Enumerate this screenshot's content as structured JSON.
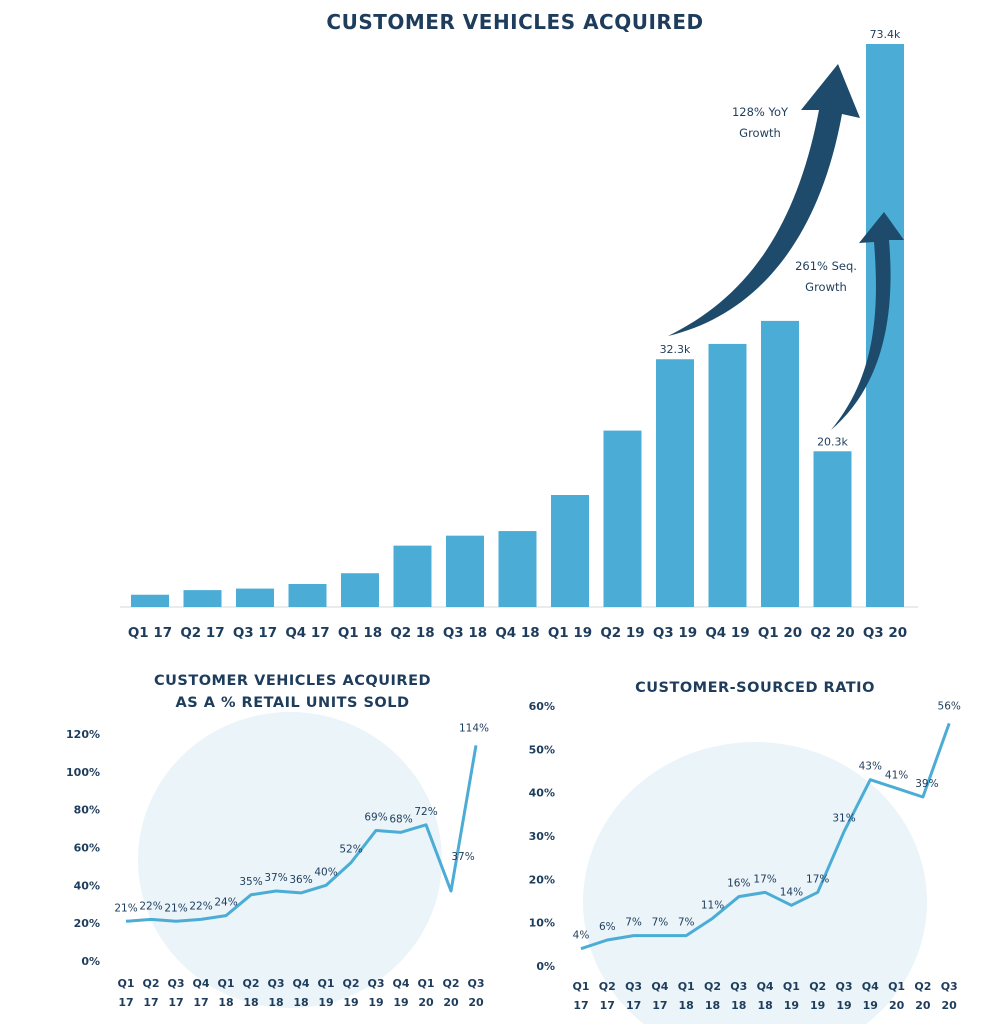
{
  "colors": {
    "bar": "#4bacd6",
    "line": "#4bacd6",
    "dark": "#1e4a6b",
    "circle": "#eaf4f9",
    "text": "#1e3d5c"
  },
  "main_title": "CUSTOMER VEHICLES ACQUIRED",
  "left_title_line1": "CUSTOMER VEHICLES ACQUIRED",
  "left_title_line2": "AS A % RETAIL UNITS SOLD",
  "right_title": "CUSTOMER-SOURCED RATIO",
  "annotations": {
    "yoy": [
      "128% YoY",
      "Growth"
    ],
    "seq": [
      "261% Seq.",
      "Growth"
    ]
  },
  "chart_data": [
    {
      "type": "bar",
      "title": "CUSTOMER VEHICLES ACQUIRED",
      "categories": [
        "Q1 17",
        "Q2 17",
        "Q3 17",
        "Q4 17",
        "Q1 18",
        "Q2 18",
        "Q3 18",
        "Q4 18",
        "Q1 19",
        "Q2 19",
        "Q3 19",
        "Q4 19",
        "Q1 20",
        "Q2 20",
        "Q3 20"
      ],
      "values": [
        1.6,
        2.2,
        2.4,
        3.0,
        4.4,
        8.0,
        9.3,
        9.9,
        14.6,
        23.0,
        32.3,
        34.3,
        37.3,
        20.3,
        73.4
      ],
      "data_labels": [
        "",
        "",
        "",
        "",
        "",
        "",
        "",
        "",
        "",
        "",
        "32.3k",
        "",
        "",
        "20.3k",
        "73.4k"
      ],
      "ylim": [
        0,
        73.4
      ],
      "unit": "k"
    },
    {
      "type": "line",
      "title": "CUSTOMER VEHICLES ACQUIRED AS A % RETAIL UNITS SOLD",
      "categories": [
        [
          "Q1",
          "17"
        ],
        [
          "Q2",
          "17"
        ],
        [
          "Q3",
          "17"
        ],
        [
          "Q4",
          "17"
        ],
        [
          "Q1",
          "18"
        ],
        [
          "Q2",
          "18"
        ],
        [
          "Q3",
          "18"
        ],
        [
          "Q4",
          "18"
        ],
        [
          "Q1",
          "19"
        ],
        [
          "Q2",
          "19"
        ],
        [
          "Q3",
          "19"
        ],
        [
          "Q4",
          "19"
        ],
        [
          "Q1",
          "20"
        ],
        [
          "Q2",
          "20"
        ],
        [
          "Q3",
          "20"
        ]
      ],
      "values": [
        21,
        22,
        21,
        22,
        24,
        35,
        37,
        36,
        40,
        52,
        69,
        68,
        72,
        37,
        114
      ],
      "data_labels": [
        "21%",
        "22%",
        "21%",
        "22%",
        "24%",
        "35%",
        "37%",
        "36%",
        "40%",
        "52%",
        "69%",
        "68%",
        "72%",
        "37%",
        "114%"
      ],
      "yticks": [
        "0%",
        "20%",
        "40%",
        "60%",
        "80%",
        "100%",
        "120%"
      ],
      "ylim": [
        0,
        120
      ]
    },
    {
      "type": "line",
      "title": "CUSTOMER-SOURCED RATIO",
      "categories": [
        [
          "Q1",
          "17"
        ],
        [
          "Q2",
          "17"
        ],
        [
          "Q3",
          "17"
        ],
        [
          "Q4",
          "17"
        ],
        [
          "Q1",
          "18"
        ],
        [
          "Q2",
          "18"
        ],
        [
          "Q3",
          "18"
        ],
        [
          "Q4",
          "18"
        ],
        [
          "Q1",
          "19"
        ],
        [
          "Q2",
          "19"
        ],
        [
          "Q3",
          "19"
        ],
        [
          "Q4",
          "19"
        ],
        [
          "Q1",
          "20"
        ],
        [
          "Q2",
          "20"
        ],
        [
          "Q3",
          "20"
        ]
      ],
      "values": [
        4,
        6,
        7,
        7,
        7,
        11,
        16,
        17,
        14,
        17,
        31,
        43,
        41,
        39,
        56
      ],
      "data_labels": [
        "4%",
        "6%",
        "7%",
        "7%",
        "7%",
        "11%",
        "16%",
        "17%",
        "14%",
        "17%",
        "31%",
        "43%",
        "41%",
        "39%",
        "56%"
      ],
      "yticks": [
        "0%",
        "10%",
        "20%",
        "30%",
        "40%",
        "50%",
        "60%"
      ],
      "ylim": [
        0,
        60
      ]
    }
  ]
}
